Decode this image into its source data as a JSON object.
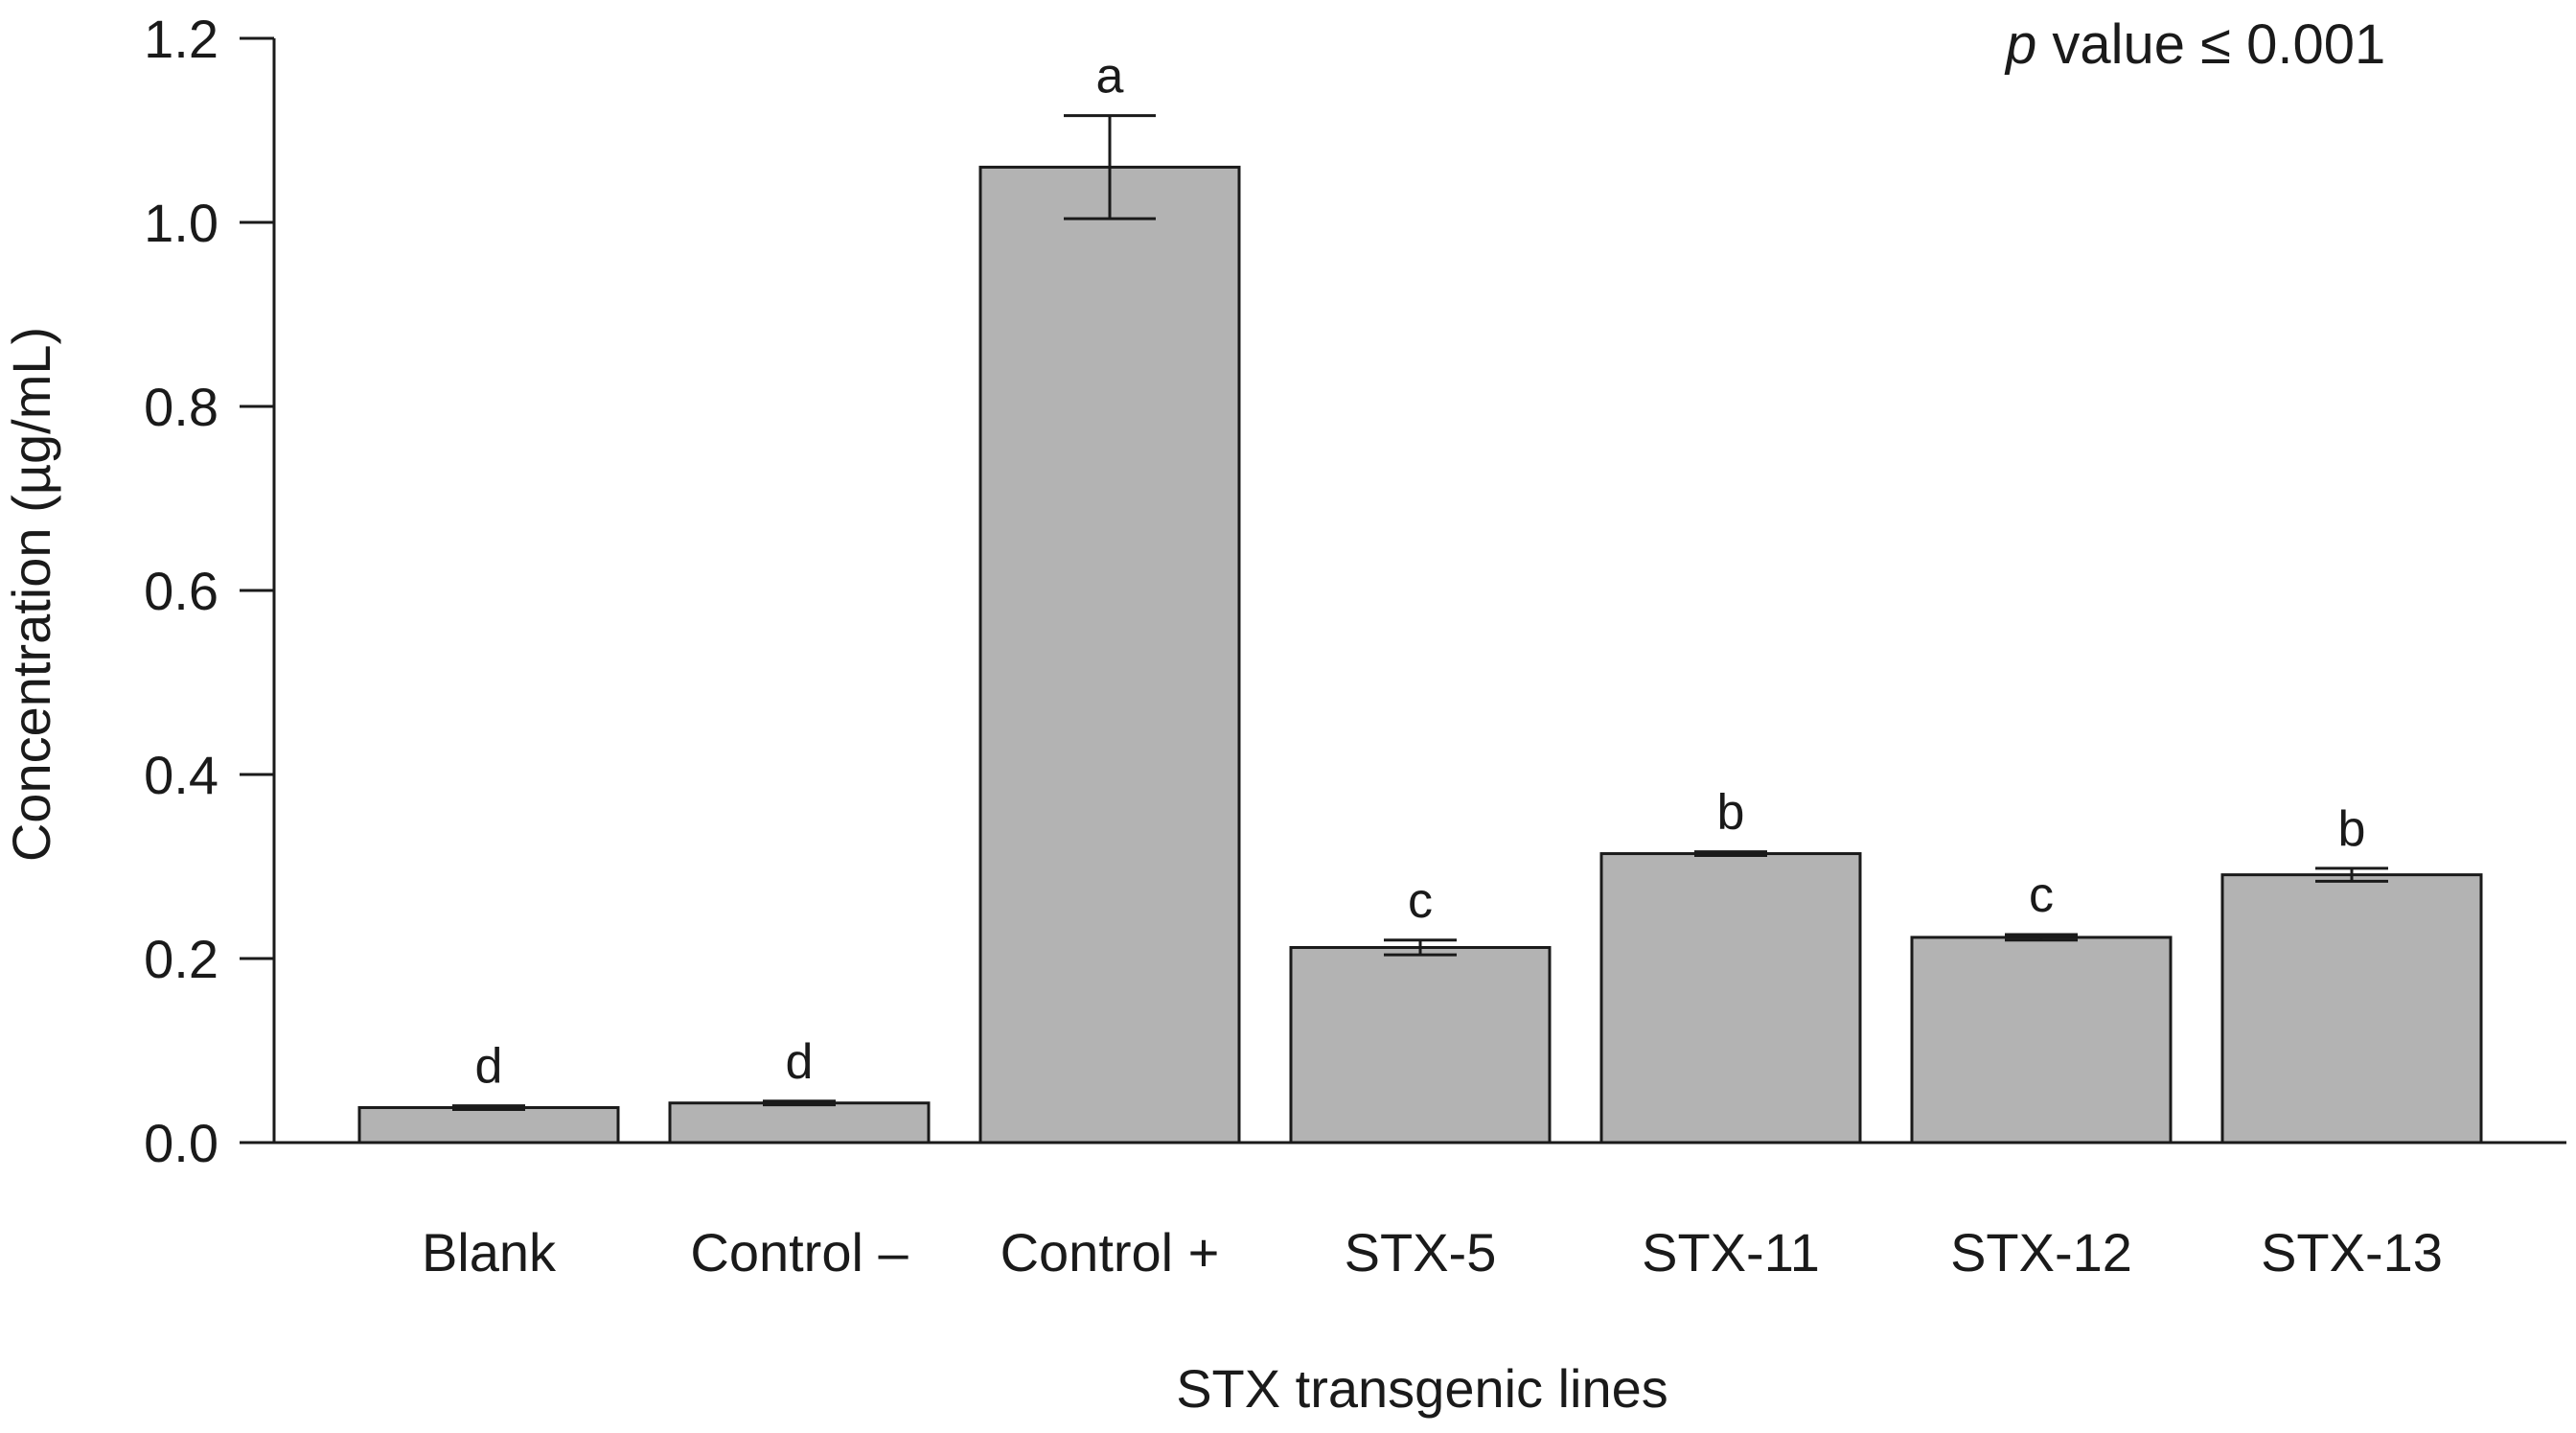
{
  "chart_data": {
    "type": "bar",
    "title": "",
    "xlabel": "STX transgenic lines",
    "ylabel": "Concentration (µg/mL)",
    "ylim": [
      0,
      1.2
    ],
    "yticks": [
      0.0,
      0.2,
      0.4,
      0.6,
      0.8,
      1.0,
      1.2
    ],
    "ytick_labels": [
      "0.0",
      "0.2",
      "0.4",
      "0.6",
      "0.8",
      "1.0",
      "1.2"
    ],
    "categories": [
      "Blank",
      "Control –",
      "Control +",
      "STX-5",
      "STX-11",
      "STX-12",
      "STX-13"
    ],
    "values": [
      0.038,
      0.043,
      1.06,
      0.212,
      0.314,
      0.223,
      0.291
    ],
    "errors": [
      0.002,
      0.002,
      0.056,
      0.008,
      0.002,
      0.003,
      0.007
    ],
    "significance_letters": [
      "d",
      "d",
      "a",
      "c",
      "b",
      "c",
      "b"
    ],
    "annotation": {
      "p_symbol": "p",
      "text": " value ≤ 0.001"
    },
    "bar_color": "#b3b3b3",
    "edge_color": "#1a1a1a"
  }
}
